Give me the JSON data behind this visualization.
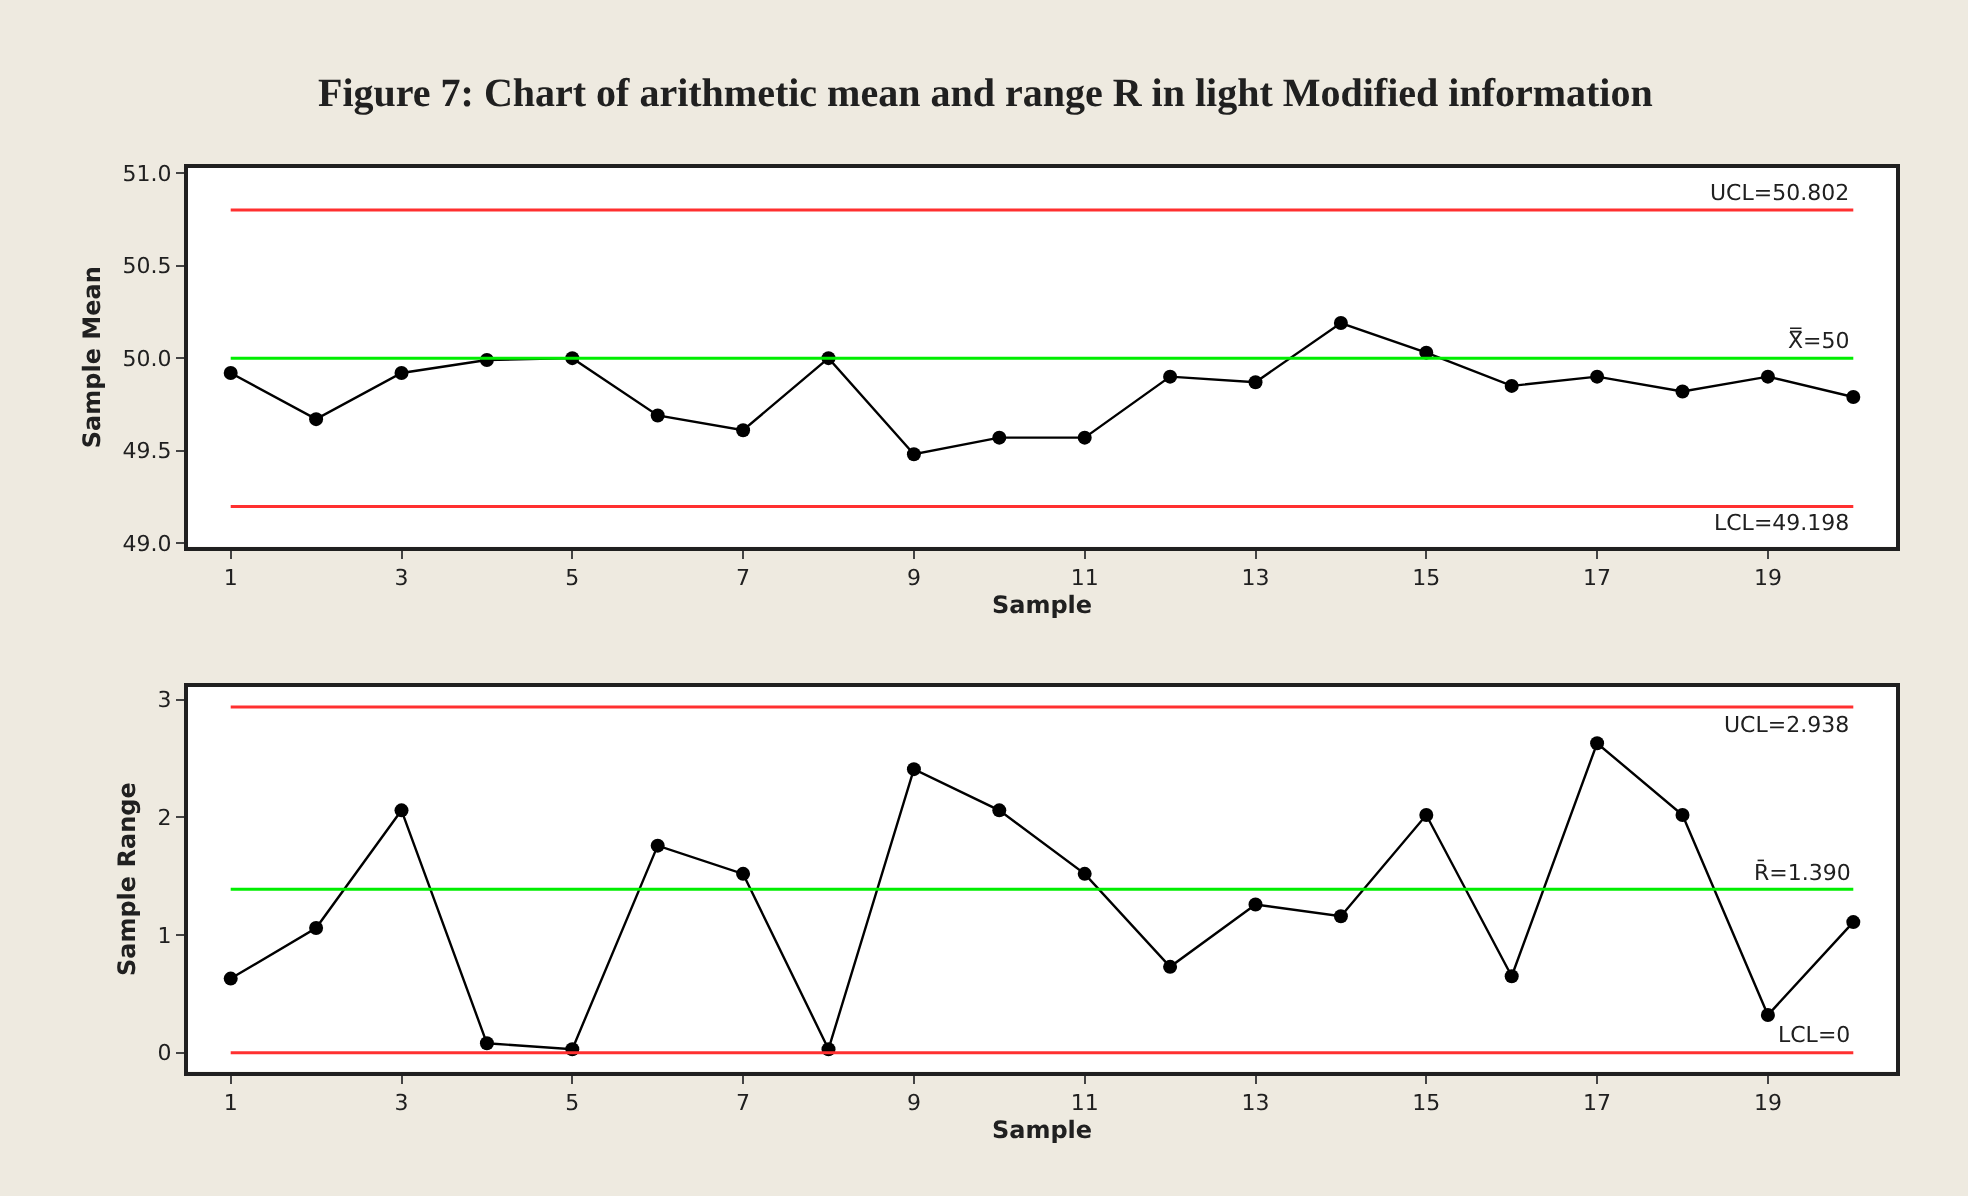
{
  "chart_data": [
    {
      "type": "line",
      "title": "Figure 7: Chart of arithmetic mean and range R in light Modified information",
      "xlabel": "Sample",
      "ylabel": "Sample Mean",
      "x": [
        1,
        2,
        3,
        4,
        5,
        6,
        7,
        8,
        9,
        10,
        11,
        12,
        13,
        14,
        15,
        16,
        17,
        18,
        19,
        20
      ],
      "series": [
        {
          "color": "#000000",
          "values": [
            49.92,
            49.67,
            49.92,
            49.99,
            50.0,
            49.69,
            49.61,
            50.0,
            49.48,
            49.57,
            49.57,
            49.9,
            49.87,
            50.19,
            50.03,
            49.85,
            49.9,
            49.82,
            49.9,
            49.79
          ]
        }
      ],
      "xlim": [
        0.5,
        20.5
      ],
      "xticks": [
        1,
        3,
        5,
        7,
        9,
        11,
        13,
        15,
        17,
        19
      ],
      "ylim": [
        48.98,
        51.03
      ],
      "yticks": [
        {
          "value": 49,
          "label": "49.0"
        },
        49.5,
        {
          "value": 50,
          "label": "50.0"
        },
        50.5,
        {
          "value": 51,
          "label": "51.0"
        }
      ],
      "ref_lines": [
        {
          "axis": "y",
          "value": 50.802,
          "label": "UCL=50.802",
          "color": "#ff3030"
        },
        {
          "axis": "y",
          "value": 50,
          "label": "X̿=50",
          "color": "#00ee00"
        },
        {
          "axis": "y",
          "value": 49.198,
          "label": "LCL=49.198",
          "color": "#ff3030"
        }
      ],
      "marker": "circle",
      "line_style": "solid",
      "grid": false
    },
    {
      "type": "line",
      "xlabel": "Sample",
      "ylabel": "Sample Range",
      "x": [
        1,
        2,
        3,
        4,
        5,
        6,
        7,
        8,
        9,
        10,
        11,
        12,
        13,
        14,
        15,
        16,
        17,
        18,
        19,
        20
      ],
      "series": [
        {
          "color": "#000000",
          "values": [
            0.63,
            1.06,
            2.06,
            0.08,
            0.03,
            1.76,
            1.52,
            0.03,
            2.41,
            2.06,
            1.52,
            0.73,
            1.26,
            1.16,
            2.02,
            0.65,
            2.63,
            2.02,
            0.32,
            1.11
          ]
        }
      ],
      "xlim": [
        0.5,
        20.5
      ],
      "xticks": [
        1,
        3,
        5,
        7,
        9,
        11,
        13,
        15,
        17,
        19
      ],
      "ylim": [
        -0.16,
        3.11
      ],
      "yticks": [
        0,
        1,
        2,
        3
      ],
      "ref_lines": [
        {
          "axis": "y",
          "value": 2.938,
          "label": "UCL=2.938",
          "color": "#ff3030"
        },
        {
          "axis": "y",
          "value": 1.39,
          "label": "R̄=1.390",
          "color": "#00ee00"
        },
        {
          "axis": "y",
          "value": 0,
          "label": "LCL=0",
          "color": "#ff3030"
        }
      ],
      "marker": "circle",
      "line_style": "solid",
      "grid": false
    }
  ]
}
